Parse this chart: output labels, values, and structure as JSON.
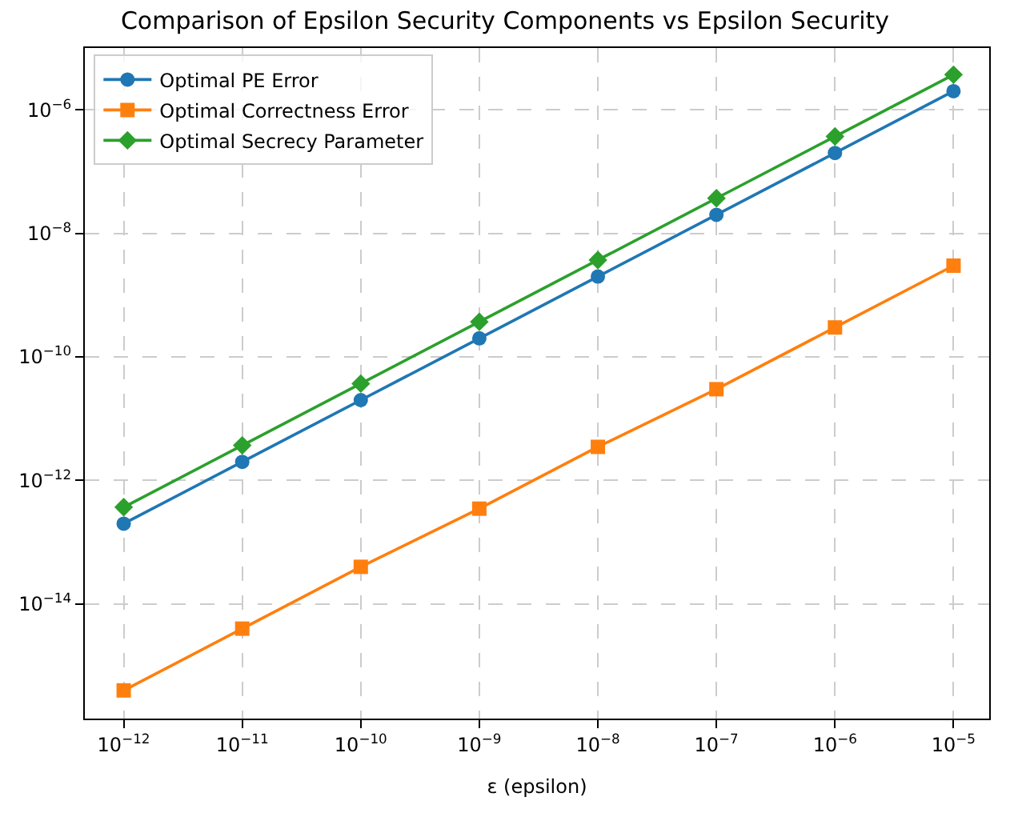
{
  "chart_data": {
    "type": "line",
    "title": "Comparison of Epsilon Security Components vs Epsilon Security",
    "xlabel": "ε (epsilon)",
    "log": "xy",
    "grid": true,
    "legend": "top left",
    "line_style": "solid",
    "x": [
      1e-12,
      1e-11,
      1e-10,
      1e-09,
      1e-08,
      1e-07,
      1e-06,
      1e-05
    ],
    "xlim": [
      4.7e-13,
      2e-05
    ],
    "ylim": [
      1.4e-16,
      1e-05
    ],
    "xticks": [
      {
        "value": 1e-12,
        "label": "10$^{−12}$"
      },
      {
        "value": 1e-11,
        "label": "10$^{−11}$"
      },
      {
        "value": 1e-10,
        "label": "10$^{−10}$"
      },
      {
        "value": 1e-09,
        "label": "10$^{−9}$"
      },
      {
        "value": 1e-08,
        "label": "10$^{−8}$"
      },
      {
        "value": 1e-07,
        "label": "10$^{−7}$"
      },
      {
        "value": 1e-06,
        "label": "10$^{−6}$"
      },
      {
        "value": 1e-05,
        "label": "10$^{−5}$"
      }
    ],
    "yticks": [
      {
        "value": 1e-14,
        "label": "10$^{−14}$"
      },
      {
        "value": 1e-12,
        "label": "10$^{−12}$"
      },
      {
        "value": 1e-10,
        "label": "10$^{−10}$"
      },
      {
        "value": 1e-08,
        "label": "10$^{−8}$"
      },
      {
        "value": 1e-06,
        "label": "10$^{−6}$"
      }
    ],
    "series": [
      {
        "name": "Optimal PE Error",
        "color": "#1f77b4",
        "marker": "circle",
        "values": [
          2e-13,
          2e-12,
          2e-11,
          2e-10,
          2e-09,
          2e-08,
          2e-07,
          2e-06
        ]
      },
      {
        "name": "Optimal Correctness Error",
        "color": "#ff7f0e",
        "marker": "square",
        "values": [
          4e-16,
          4e-15,
          4e-14,
          3.5e-13,
          3.5e-12,
          3e-11,
          3e-10,
          3e-09
        ]
      },
      {
        "name": "Optimal Secrecy Parameter",
        "color": "#2ca02c",
        "marker": "diamond",
        "values": [
          3.7e-13,
          3.7e-12,
          3.7e-11,
          3.7e-10,
          3.7e-09,
          3.7e-08,
          3.7e-07,
          3.7e-06
        ]
      }
    ]
  }
}
